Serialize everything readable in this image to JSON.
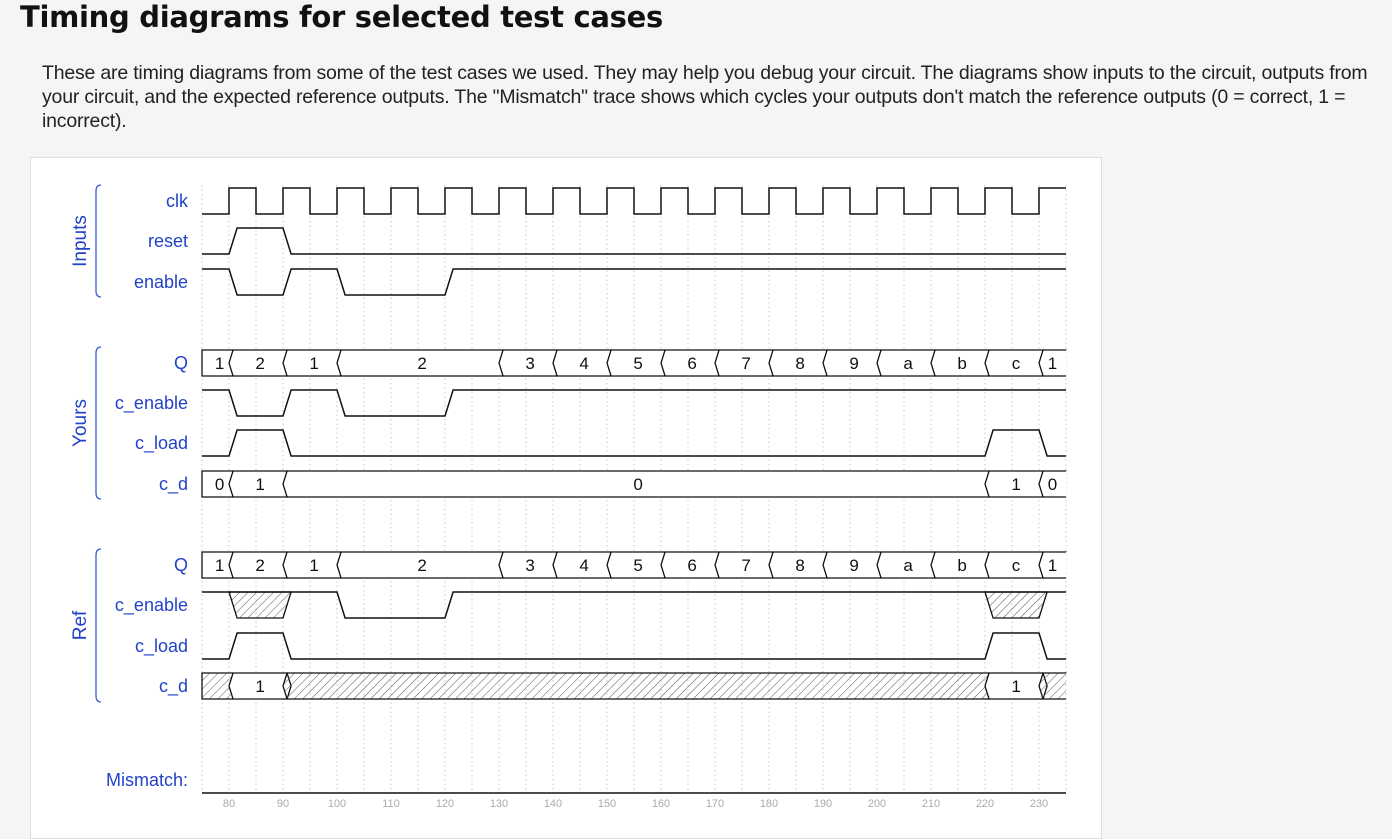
{
  "page": {
    "title": "Timing diagrams for selected test cases",
    "intro": "These are timing diagrams from some of the test cases we used. They may help you debug your circuit. The diagrams show inputs to the circuit, outputs from your circuit, and the expected reference outputs. The \"Mismatch\" trace shows which cycles your outputs don't match the reference outputs (0 = correct, 1 = incorrect)."
  },
  "colors": {
    "label": "#2342c8",
    "wave": "#111111",
    "grid": "#c8c8c8",
    "tick": "#aaaaaa"
  },
  "chart_data": {
    "type": "timing",
    "time_range": [
      75,
      235
    ],
    "ticks": [
      80,
      90,
      100,
      110,
      120,
      130,
      140,
      150,
      160,
      170,
      180,
      190,
      200,
      210,
      220,
      230
    ],
    "groups": [
      {
        "name": "Inputs",
        "signals": [
          "clk",
          "reset",
          "enable"
        ]
      },
      {
        "name": "Yours",
        "signals": [
          "Q",
          "c_enable",
          "c_load",
          "c_d"
        ]
      },
      {
        "name": "Ref",
        "signals": [
          "Q",
          "c_enable",
          "c_load",
          "c_d"
        ]
      }
    ],
    "signals": [
      {
        "label": "clk",
        "kind": "clock",
        "first_rise": 80,
        "period": 10
      },
      {
        "label": "reset",
        "kind": "bit",
        "changes": [
          [
            75,
            0
          ],
          [
            80,
            1
          ],
          [
            90,
            0
          ]
        ]
      },
      {
        "label": "enable",
        "kind": "bit",
        "changes": [
          [
            75,
            1
          ],
          [
            80,
            0
          ],
          [
            90,
            1
          ],
          [
            100,
            0
          ],
          [
            120,
            1
          ]
        ]
      },
      {
        "label": "Q",
        "kind": "bus",
        "segments": [
          [
            75,
            80,
            "1"
          ],
          [
            80,
            90,
            "2"
          ],
          [
            90,
            100,
            "1"
          ],
          [
            100,
            130,
            "2"
          ],
          [
            130,
            140,
            "3"
          ],
          [
            140,
            150,
            "4"
          ],
          [
            150,
            160,
            "5"
          ],
          [
            160,
            170,
            "6"
          ],
          [
            170,
            180,
            "7"
          ],
          [
            180,
            190,
            "8"
          ],
          [
            190,
            200,
            "9"
          ],
          [
            200,
            210,
            "a"
          ],
          [
            210,
            220,
            "b"
          ],
          [
            220,
            230,
            "c"
          ],
          [
            230,
            235,
            "1"
          ]
        ]
      },
      {
        "label": "c_enable",
        "kind": "bit",
        "changes": [
          [
            75,
            1
          ],
          [
            80,
            0
          ],
          [
            90,
            1
          ],
          [
            100,
            0
          ],
          [
            120,
            1
          ]
        ]
      },
      {
        "label": "c_load",
        "kind": "bit",
        "changes": [
          [
            75,
            0
          ],
          [
            80,
            1
          ],
          [
            90,
            0
          ],
          [
            220,
            1
          ],
          [
            230,
            0
          ]
        ]
      },
      {
        "label": "c_d",
        "kind": "bus",
        "segments": [
          [
            75,
            80,
            "0"
          ],
          [
            80,
            90,
            "1"
          ],
          [
            90,
            220,
            "0"
          ],
          [
            220,
            230,
            "1"
          ],
          [
            230,
            235,
            "0"
          ]
        ]
      },
      {
        "label": "Q",
        "kind": "bus",
        "segments": [
          [
            75,
            80,
            "1"
          ],
          [
            80,
            90,
            "2"
          ],
          [
            90,
            100,
            "1"
          ],
          [
            100,
            130,
            "2"
          ],
          [
            130,
            140,
            "3"
          ],
          [
            140,
            150,
            "4"
          ],
          [
            150,
            160,
            "5"
          ],
          [
            160,
            170,
            "6"
          ],
          [
            170,
            180,
            "7"
          ],
          [
            180,
            190,
            "8"
          ],
          [
            190,
            200,
            "9"
          ],
          [
            200,
            210,
            "a"
          ],
          [
            210,
            220,
            "b"
          ],
          [
            220,
            230,
            "c"
          ],
          [
            230,
            235,
            "1"
          ]
        ]
      },
      {
        "label": "c_enable",
        "kind": "bit",
        "changes": [
          [
            75,
            1
          ],
          [
            80,
            "x"
          ],
          [
            90,
            1
          ],
          [
            100,
            0
          ],
          [
            120,
            1
          ],
          [
            220,
            "x"
          ],
          [
            230,
            1
          ]
        ]
      },
      {
        "label": "c_load",
        "kind": "bit",
        "changes": [
          [
            75,
            0
          ],
          [
            80,
            1
          ],
          [
            90,
            0
          ],
          [
            220,
            1
          ],
          [
            230,
            0
          ]
        ]
      },
      {
        "label": "c_d",
        "kind": "bus",
        "segments": [
          [
            75,
            80,
            null
          ],
          [
            80,
            90,
            "1"
          ],
          [
            90,
            220,
            null
          ],
          [
            220,
            230,
            "1"
          ],
          [
            230,
            235,
            null
          ]
        ]
      },
      {
        "label": "Mismatch:",
        "kind": "bit",
        "changes": [
          [
            75,
            0
          ]
        ]
      }
    ]
  }
}
